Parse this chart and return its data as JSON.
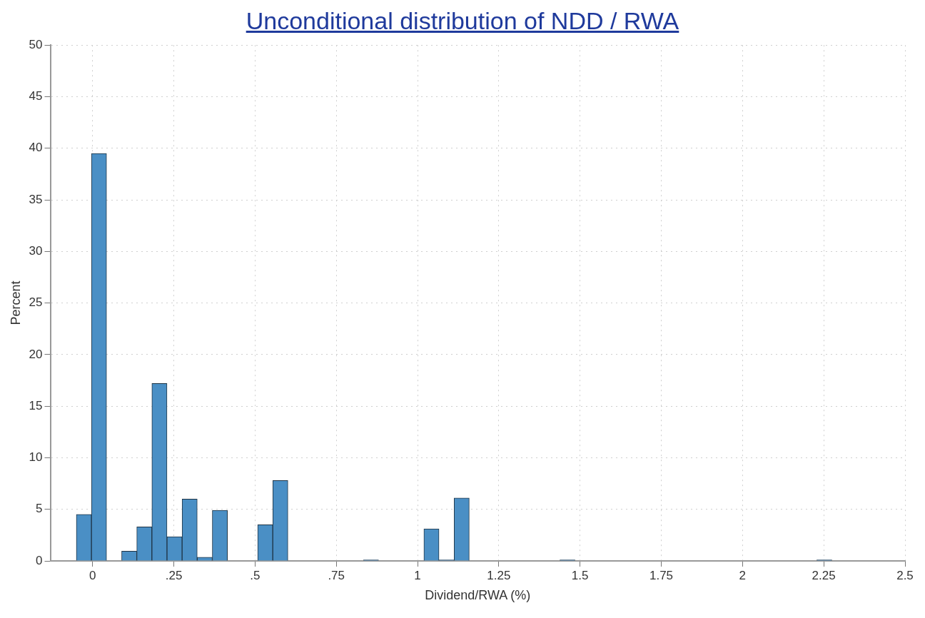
{
  "chart_data": {
    "type": "histogram",
    "title": "Unconditional distribution of NDD / RWA",
    "xlabel": "Dividend/RWA (%)",
    "ylabel": "Percent",
    "bins": [
      -0.05,
      -0.0035,
      0.043,
      0.0895,
      0.136,
      0.1825,
      0.229,
      0.2755,
      0.322,
      0.3685,
      0.415,
      0.4615,
      0.508,
      0.5545,
      0.601,
      0.6475,
      0.694,
      0.7405,
      0.787,
      0.8335,
      0.88,
      0.9265,
      0.973,
      1.0195,
      1.066,
      1.1125,
      1.159,
      1.2055,
      1.252,
      1.2985,
      1.345,
      1.3915,
      1.438,
      1.4845,
      1.531,
      1.5775,
      1.624,
      1.6705,
      1.717,
      1.7635,
      1.81,
      1.8565,
      1.903,
      1.9495,
      1.996,
      2.0425,
      2.089,
      2.1355,
      2.182,
      2.2285,
      2.275
    ],
    "values": [
      4.5,
      39.5,
      0,
      0.95,
      3.3,
      17.2,
      2.35,
      6,
      0.35,
      4.9,
      0,
      0,
      3.5,
      7.8,
      0,
      0,
      0,
      0,
      0,
      0.1,
      0,
      0,
      0,
      3.1,
      0.1,
      6.1,
      0,
      0,
      0,
      0,
      0,
      0,
      0.1,
      0,
      0,
      0,
      0,
      0,
      0,
      0,
      0,
      0,
      0,
      0,
      0,
      0,
      0,
      0,
      0,
      0.1
    ],
    "color": "#4a8fc5",
    "xlim": [
      -0.13,
      2.5
    ],
    "xticks": [
      0,
      {
        "value": 0.25,
        "label": ".25"
      },
      {
        "value": 0.5,
        "label": ".5"
      },
      {
        "value": 0.75,
        "label": ".75"
      },
      1,
      1.25,
      1.5,
      1.75,
      2,
      2.25,
      2.5
    ],
    "ylim": [
      0,
      50
    ],
    "yticks": [
      0,
      5,
      10,
      15,
      20,
      25,
      30,
      35,
      40,
      45,
      50
    ],
    "grid": true,
    "legend": false
  }
}
